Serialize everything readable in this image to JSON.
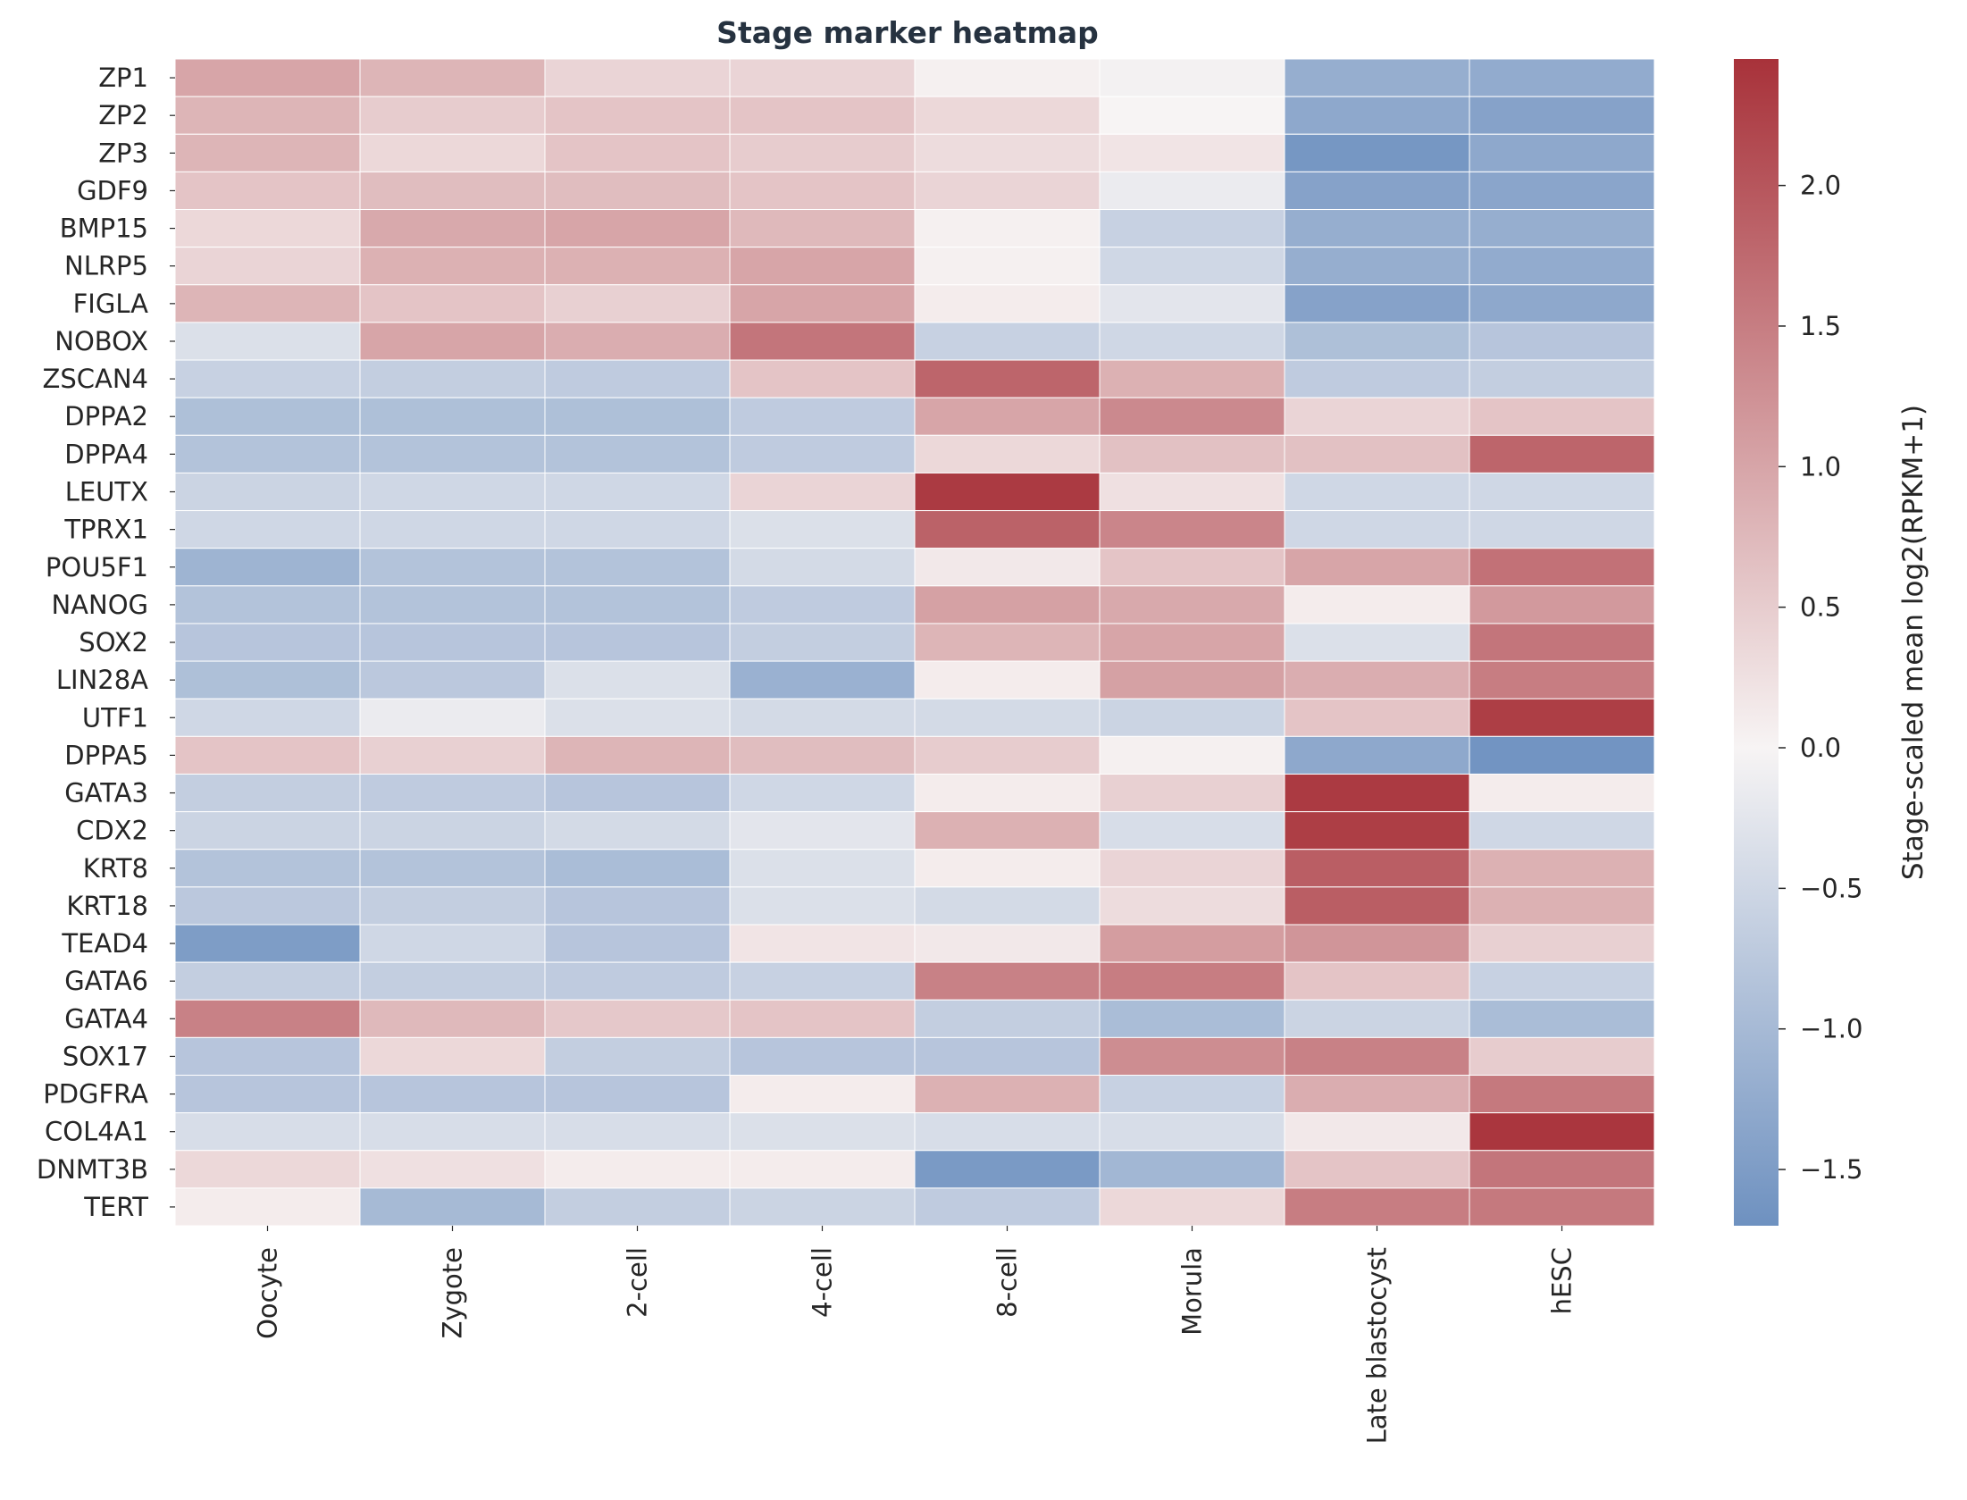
{
  "chart_data": {
    "type": "heatmap",
    "title": "Stage marker heatmap",
    "xlabel": "",
    "ylabel": "",
    "x_categories": [
      "Oocyte",
      "Zygote",
      "2-cell",
      "4-cell",
      "8-cell",
      "Morula",
      "Late blastocyst",
      "hESC"
    ],
    "y_categories": [
      "ZP1",
      "ZP2",
      "ZP3",
      "GDF9",
      "BMP15",
      "NLRP5",
      "FIGLA",
      "NOBOX",
      "ZSCAN4",
      "DPPA2",
      "DPPA4",
      "LEUTX",
      "TPRX1",
      "POU5F1",
      "NANOG",
      "SOX2",
      "LIN28A",
      "UTF1",
      "DPPA5",
      "GATA3",
      "CDX2",
      "KRT8",
      "KRT18",
      "TEAD4",
      "GATA6",
      "GATA4",
      "SOX17",
      "PDGFRA",
      "COL4A1",
      "DNMT3B",
      "TERT"
    ],
    "values": [
      [
        1.0,
        0.8,
        0.4,
        0.4,
        0.05,
        -0.05,
        -1.2,
        -1.25
      ],
      [
        0.8,
        0.5,
        0.6,
        0.6,
        0.35,
        0.0,
        -1.3,
        -1.4
      ],
      [
        0.8,
        0.35,
        0.6,
        0.5,
        0.3,
        0.2,
        -1.6,
        -1.3
      ],
      [
        0.6,
        0.7,
        0.7,
        0.6,
        0.4,
        -0.15,
        -1.4,
        -1.35
      ],
      [
        0.35,
        0.95,
        1.0,
        0.75,
        0.05,
        -0.6,
        -1.2,
        -1.2
      ],
      [
        0.4,
        0.85,
        0.85,
        1.0,
        0.05,
        -0.5,
        -1.2,
        -1.25
      ],
      [
        0.8,
        0.6,
        0.45,
        1.0,
        0.1,
        -0.25,
        -1.4,
        -1.3
      ],
      [
        -0.35,
        1.0,
        0.9,
        1.6,
        -0.6,
        -0.5,
        -0.9,
        -0.8
      ],
      [
        -0.6,
        -0.65,
        -0.7,
        0.6,
        1.8,
        0.85,
        -0.7,
        -0.65
      ],
      [
        -0.9,
        -0.9,
        -0.9,
        -0.7,
        1.0,
        1.35,
        0.4,
        0.6
      ],
      [
        -0.85,
        -0.85,
        -0.85,
        -0.7,
        0.35,
        0.65,
        0.65,
        1.8
      ],
      [
        -0.55,
        -0.5,
        -0.5,
        0.4,
        2.35,
        0.25,
        -0.5,
        -0.5
      ],
      [
        -0.5,
        -0.5,
        -0.5,
        -0.35,
        1.85,
        1.4,
        -0.5,
        -0.5
      ],
      [
        -1.1,
        -0.85,
        -0.85,
        -0.45,
        0.15,
        0.6,
        1.0,
        1.65
      ],
      [
        -0.85,
        -0.85,
        -0.85,
        -0.7,
        1.05,
        0.95,
        0.1,
        1.15
      ],
      [
        -0.8,
        -0.8,
        -0.8,
        -0.65,
        0.8,
        1.0,
        -0.35,
        1.6
      ],
      [
        -0.9,
        -0.75,
        -0.35,
        -1.15,
        0.1,
        1.05,
        0.9,
        1.5
      ],
      [
        -0.5,
        -0.15,
        -0.35,
        -0.45,
        -0.45,
        -0.55,
        0.6,
        2.3
      ],
      [
        0.6,
        0.45,
        0.8,
        0.7,
        0.5,
        0.05,
        -1.3,
        -1.65
      ],
      [
        -0.65,
        -0.7,
        -0.8,
        -0.5,
        0.1,
        0.45,
        2.35,
        0.1
      ],
      [
        -0.55,
        -0.55,
        -0.45,
        -0.25,
        0.85,
        -0.4,
        2.3,
        -0.5
      ],
      [
        -0.85,
        -0.85,
        -0.95,
        -0.35,
        0.1,
        0.4,
        1.9,
        0.85
      ],
      [
        -0.75,
        -0.65,
        -0.8,
        -0.35,
        -0.45,
        0.3,
        1.9,
        0.85
      ],
      [
        -1.5,
        -0.5,
        -0.8,
        0.2,
        0.15,
        1.1,
        1.2,
        0.45
      ],
      [
        -0.65,
        -0.65,
        -0.7,
        -0.6,
        1.45,
        1.5,
        0.6,
        -0.6
      ],
      [
        1.45,
        0.75,
        0.55,
        0.6,
        -0.65,
        -0.95,
        -0.55,
        -0.95
      ],
      [
        -0.8,
        0.35,
        -0.65,
        -0.8,
        -0.8,
        1.3,
        1.45,
        0.5
      ],
      [
        -0.8,
        -0.8,
        -0.8,
        0.1,
        0.85,
        -0.6,
        0.9,
        1.55
      ],
      [
        -0.4,
        -0.4,
        -0.4,
        -0.35,
        -0.4,
        -0.4,
        0.15,
        2.4
      ],
      [
        0.35,
        0.25,
        0.1,
        0.1,
        -1.55,
        -1.05,
        0.6,
        1.6
      ],
      [
        0.1,
        -1.0,
        -0.65,
        -0.55,
        -0.7,
        0.35,
        1.5,
        1.55
      ]
    ],
    "colorbar": {
      "label": "Stage-scaled mean log2(RPKM+1)",
      "min": -1.7,
      "max": 2.45,
      "ticks": [
        "2.0",
        "1.5",
        "1.0",
        "0.5",
        "0.0",
        "−0.5",
        "−1.0",
        "−1.5"
      ],
      "colors": {
        "low": "#6e91c0",
        "mid": "#f7f4f4",
        "high": "#a8323a"
      }
    }
  }
}
